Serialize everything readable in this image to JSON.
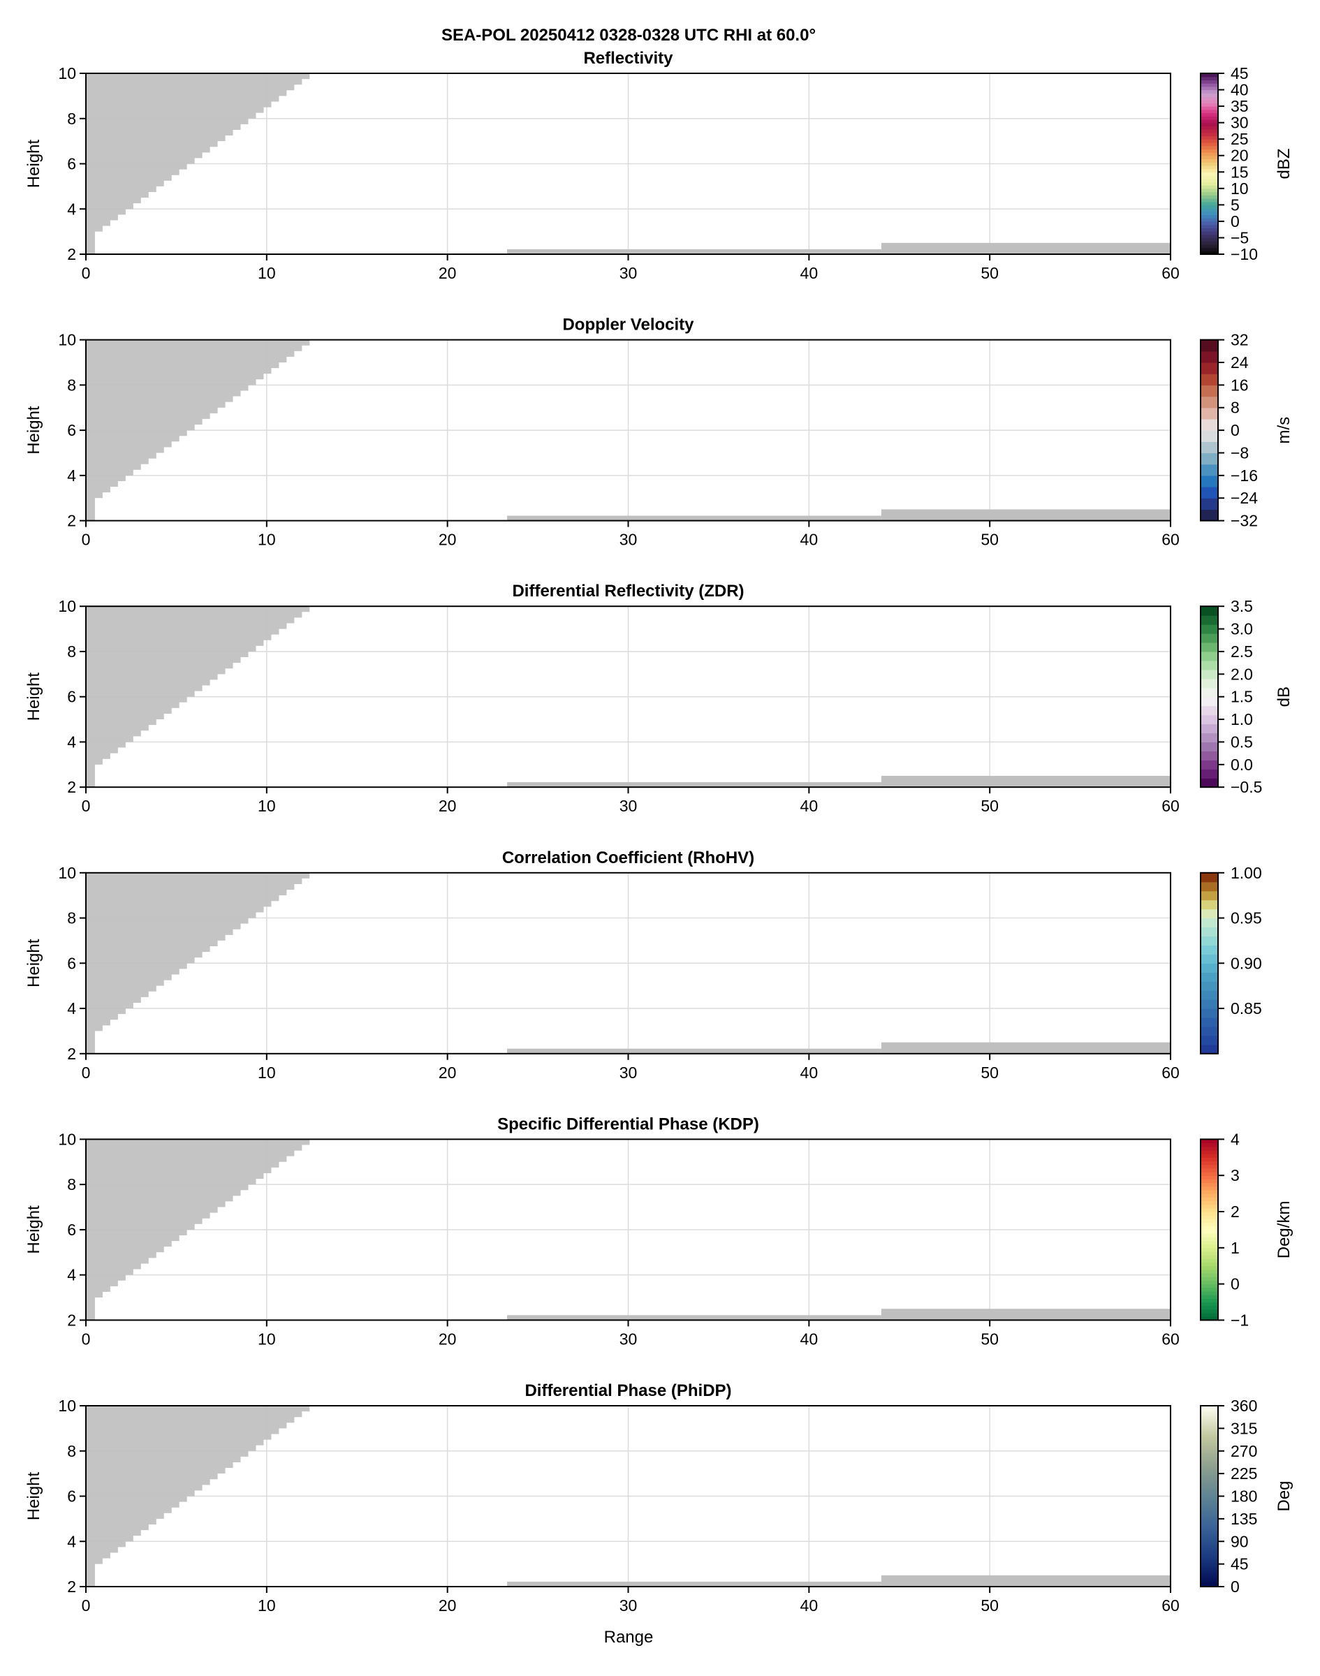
{
  "chart_data": {
    "type": "heatmap",
    "title": "SEA-POL 20250412 0328-0328 UTC RHI at 60.0°",
    "xlabel": "Range",
    "ylabel": "Height",
    "xlim": [
      0,
      60
    ],
    "ylim": [
      2,
      10
    ],
    "xticks": [
      0,
      10,
      20,
      30,
      40,
      50,
      60
    ],
    "yticks": [
      2,
      4,
      6,
      8,
      10
    ],
    "grid": true,
    "masked_color": "#bfbfbf",
    "masked_regions": {
      "blockage_edge": [
        [
          0.5,
          2.75
        ],
        [
          12.8,
          10
        ]
      ],
      "blockage_step_height": 0.25,
      "blockage_base": [
        [
          0,
          2.0
        ],
        [
          0.5,
          2.75
        ]
      ],
      "surface": [
        {
          "range": [
            23.3,
            44.0
          ],
          "height": [
            2.0,
            2.22
          ]
        },
        {
          "range": [
            44.0,
            60.0
          ],
          "height": [
            2.0,
            2.5
          ]
        }
      ]
    },
    "panels": [
      {
        "title": "Reflectivity",
        "units": "dBZ",
        "clim": [
          -10,
          45
        ],
        "ticks": [
          "45",
          "40",
          "35",
          "30",
          "25",
          "20",
          "15",
          "10",
          "5",
          "0",
          "−5",
          "−10"
        ],
        "tick_values": [
          45,
          40,
          35,
          30,
          25,
          20,
          15,
          10,
          5,
          0,
          -5,
          -10
        ],
        "levels": 55,
        "colors": [
          "#050505",
          "#2a2238",
          "#3f3570",
          "#4b5aa8",
          "#3f8fbf",
          "#48a898",
          "#9ccc8a",
          "#e4ee9e",
          "#fbf7b6",
          "#f2cd78",
          "#ee9a55",
          "#e2603f",
          "#c42a42",
          "#a8104e",
          "#d6307e",
          "#e782b8",
          "#c9a0d0",
          "#8d4f9c",
          "#3d0a4a"
        ]
      },
      {
        "title": "Doppler Velocity",
        "units": "m/s",
        "clim": [
          -32,
          32
        ],
        "ticks": [
          "32",
          "24",
          "16",
          "8",
          "0",
          "−8",
          "−16",
          "−24",
          "−32"
        ],
        "tick_values": [
          32,
          24,
          16,
          8,
          0,
          -8,
          -16,
          -24,
          -32
        ],
        "levels": 16,
        "colors": [
          "#1a1a3e",
          "#26306e",
          "#2246b2",
          "#1b6fbd",
          "#3f8bbf",
          "#78acc4",
          "#a9c2cc",
          "#d9dcdd",
          "#e8dbd8",
          "#e0b0a3",
          "#d08c73",
          "#c36647",
          "#ab3a2a",
          "#901a2a",
          "#6e1027",
          "#3f0b18"
        ]
      },
      {
        "title": "Differential Reflectivity (ZDR)",
        "units": "dB",
        "clim": [
          -0.5,
          3.5
        ],
        "ticks": [
          "3.5",
          "3.0",
          "2.5",
          "2.0",
          "1.5",
          "1.0",
          "0.5",
          "0.0",
          "−0.5"
        ],
        "tick_values": [
          3.5,
          3.0,
          2.5,
          2.0,
          1.5,
          1.0,
          0.5,
          0.0,
          -0.5
        ],
        "levels": 20,
        "colors": [
          "#40004b",
          "#5b166a",
          "#762a83",
          "#8b5096",
          "#9970ab",
          "#af8bbd",
          "#c2a5cf",
          "#d9c2e0",
          "#e7d4e8",
          "#f2eef3",
          "#eef4ec",
          "#dff0da",
          "#c8e8c4",
          "#a8dca2",
          "#86c985",
          "#62b067",
          "#3f9650",
          "#237a3c",
          "#12602c",
          "#00441b"
        ]
      },
      {
        "title": "Correlation Coefficient (RhoHV)",
        "units": "",
        "clim": [
          0.8,
          1.0
        ],
        "ticks": [
          "1.00",
          "0.95",
          "0.90",
          "0.85"
        ],
        "tick_values": [
          1.0,
          0.95,
          0.9,
          0.85
        ],
        "levels": 20,
        "colors": [
          "#1f3593",
          "#22449e",
          "#2650a4",
          "#2b5ca9",
          "#3069ae",
          "#3677b3",
          "#3c85b8",
          "#4392bd",
          "#4aa0c2",
          "#57b0cb",
          "#68bfd3",
          "#7ccdd6",
          "#95d9d4",
          "#afe3d2",
          "#c6ebcf",
          "#e2eab0",
          "#d3c665",
          "#b98b2f",
          "#9b571a",
          "#7a1e05"
        ]
      },
      {
        "title": "Specific Differential Phase (KDP)",
        "units": "Deg/km",
        "clim": [
          -1,
          4
        ],
        "ticks": [
          "4",
          "3",
          "2",
          "1",
          "0",
          "−1"
        ],
        "tick_values": [
          4,
          3,
          2,
          1,
          0,
          -1
        ],
        "levels": 50,
        "colors": [
          "#006837",
          "#1a9850",
          "#66bd63",
          "#a6d96a",
          "#d9ef8b",
          "#ffffbf",
          "#fee08b",
          "#fdae61",
          "#f46d43",
          "#d73027",
          "#a50026"
        ]
      },
      {
        "title": "Differential Phase (PhiDP)",
        "units": "Deg",
        "clim": [
          0,
          360
        ],
        "ticks": [
          "360",
          "315",
          "270",
          "225",
          "180",
          "135",
          "90",
          "45",
          "0"
        ],
        "tick_values": [
          360,
          315,
          270,
          225,
          180,
          135,
          90,
          45,
          0
        ],
        "levels": 100,
        "colors": [
          "#00084f",
          "#1b3a80",
          "#3a6398",
          "#5f8494",
          "#8ea08f",
          "#c2c8a0",
          "#fffff2"
        ]
      }
    ]
  }
}
